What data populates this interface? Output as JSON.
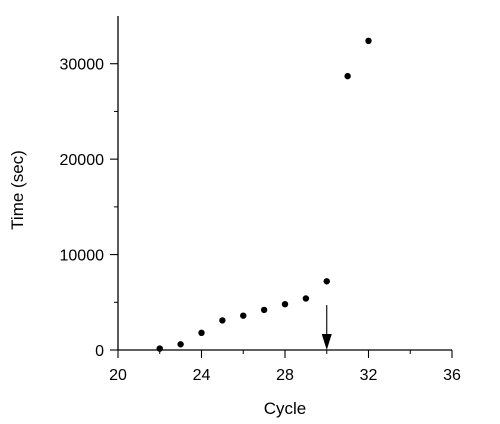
{
  "chart_data": {
    "type": "scatter",
    "title": "",
    "xlabel": "Cycle",
    "ylabel": "Time (sec)",
    "xlim": [
      20,
      36
    ],
    "ylim": [
      0,
      35000
    ],
    "x_major_ticks": [
      20,
      24,
      28,
      32,
      36
    ],
    "x_minor_ticks": [
      22,
      26,
      30,
      34
    ],
    "y_major_ticks": [
      0,
      10000,
      20000,
      30000
    ],
    "y_minor_ticks": [
      5000,
      15000,
      25000
    ],
    "x_tick_labels": [
      "20",
      "24",
      "28",
      "32",
      "36"
    ],
    "y_tick_labels": [
      "0",
      "10000",
      "20000",
      "30000"
    ],
    "grid": false,
    "legend": "none",
    "marker_color": "#000000",
    "points": [
      {
        "x": 22,
        "y": 150
      },
      {
        "x": 23,
        "y": 600
      },
      {
        "x": 24,
        "y": 1800
      },
      {
        "x": 25,
        "y": 3100
      },
      {
        "x": 26,
        "y": 3600
      },
      {
        "x": 27,
        "y": 4200
      },
      {
        "x": 28,
        "y": 4800
      },
      {
        "x": 29,
        "y": 5400
      },
      {
        "x": 30,
        "y": 7200
      },
      {
        "x": 31,
        "y": 28700
      },
      {
        "x": 32,
        "y": 32400
      }
    ],
    "annotation": {
      "type": "arrow",
      "x": 30,
      "y_from": 4700,
      "y_to": 0
    }
  }
}
